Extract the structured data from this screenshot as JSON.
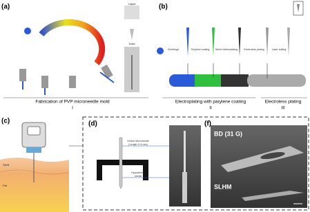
{
  "panels": {
    "a": {
      "label": "(a)",
      "liquid": "Liquid",
      "solid": "Solid",
      "caption": "Fabrication of PVP microneedle mold",
      "step": "I"
    },
    "b": {
      "label": "(b)",
      "steps": [
        "Centrifuge",
        "Parylene coating",
        "Nickel electroplating",
        "Electroless plating",
        "Laser cutting"
      ],
      "caption_2": "Electroplating with parylene coating",
      "step_2": "II",
      "caption_3": "Electroless plating",
      "step_3": "III"
    },
    "c": {
      "label": "(c)",
      "skin": "SKIN",
      "fat": "Fat"
    },
    "d": {
      "label": "(d)",
      "hollow": [
        "Hollow Microneedle",
        "(Length 3~4 mm)"
      ],
      "hypodermic": [
        "Hypodermic",
        "needle"
      ]
    },
    "f": {
      "label": "(f)",
      "bd": "BD (31 G)",
      "slhm": "SLHM"
    }
  }
}
